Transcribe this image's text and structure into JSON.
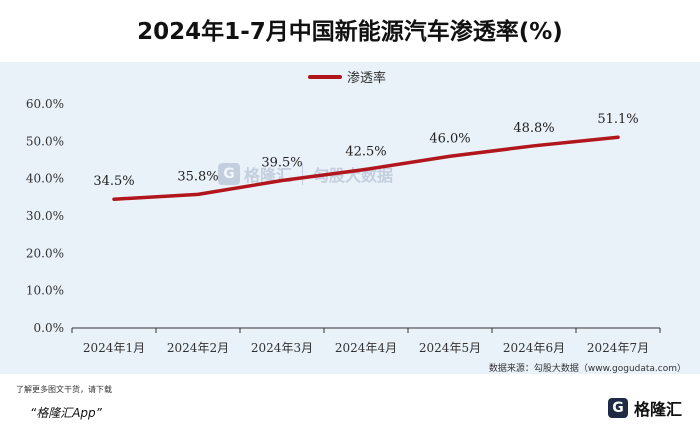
{
  "title": "2024年1-7月中国新能源汽车渗透率(%)",
  "source": "数据来源：勾股大数据（www.gogudata.com）",
  "footer": {
    "note": "了解更多图文干货，请下载",
    "app": "“格隆汇App”"
  },
  "logo": {
    "mark": "G",
    "text": "格隆汇"
  },
  "watermark": {
    "mark": "G",
    "brand": "格隆汇",
    "data": "勾股大数据"
  },
  "colors": {
    "line": "#b0161c",
    "plot_bg": "#e9f1f9",
    "axis": "#333333"
  },
  "chart_data": {
    "type": "line",
    "categories": [
      "2024年1月",
      "2024年2月",
      "2024年3月",
      "2024年4月",
      "2024年5月",
      "2024年6月",
      "2024年7月"
    ],
    "series": [
      {
        "name": "渗透率",
        "values": [
          34.5,
          35.8,
          39.5,
          42.5,
          46.0,
          48.8,
          51.1
        ]
      }
    ],
    "data_labels": [
      "34.5%",
      "35.8%",
      "39.5%",
      "42.5%",
      "46.0%",
      "48.8%",
      "51.1%"
    ],
    "y_ticks": [
      "0.0%",
      "10.0%",
      "20.0%",
      "30.0%",
      "40.0%",
      "50.0%",
      "60.0%"
    ],
    "ylim": [
      0,
      60
    ],
    "legend_position": "top-center",
    "grid": false
  }
}
